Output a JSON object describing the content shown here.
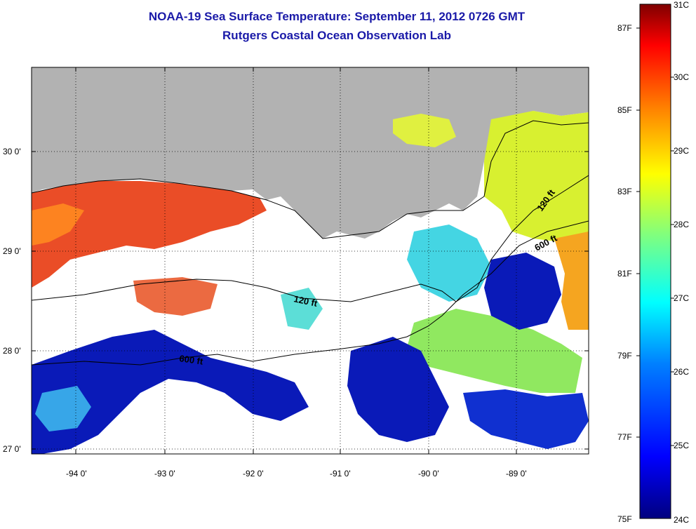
{
  "title": "NOAA-19 Sea Surface Temperature:  September 11, 2012 0726 GMT",
  "subtitle": "Rutgers Coastal Ocean Observation Lab",
  "map": {
    "longitude_labels": [
      "-94 0'",
      "-93 0'",
      "-92 0'",
      "-91 0'",
      "-90 0'",
      "-89 0'"
    ],
    "latitude_labels": [
      "30 0'",
      "29 0'",
      "28 0'",
      "27 0'"
    ],
    "contour_labels": [
      "120 ft",
      "600 ft",
      "120 ft",
      "600 ft"
    ]
  },
  "colorbar": {
    "celsius_labels": [
      "31C",
      "30C",
      "29C",
      "28C",
      "27C",
      "26C",
      "25C",
      "24C"
    ],
    "fahrenheit_labels": [
      "87F",
      "85F",
      "83F",
      "81F",
      "79F",
      "77F",
      "75F"
    ],
    "colors": [
      "#00007f",
      "#0000ff",
      "#007fff",
      "#00ffff",
      "#7fff7f",
      "#ffff00",
      "#ff7f00",
      "#ff0000",
      "#7f0000"
    ]
  },
  "colors": {
    "title": "#1a1aa8",
    "land": "#b2b2b2",
    "cloud": "#ffffff"
  }
}
